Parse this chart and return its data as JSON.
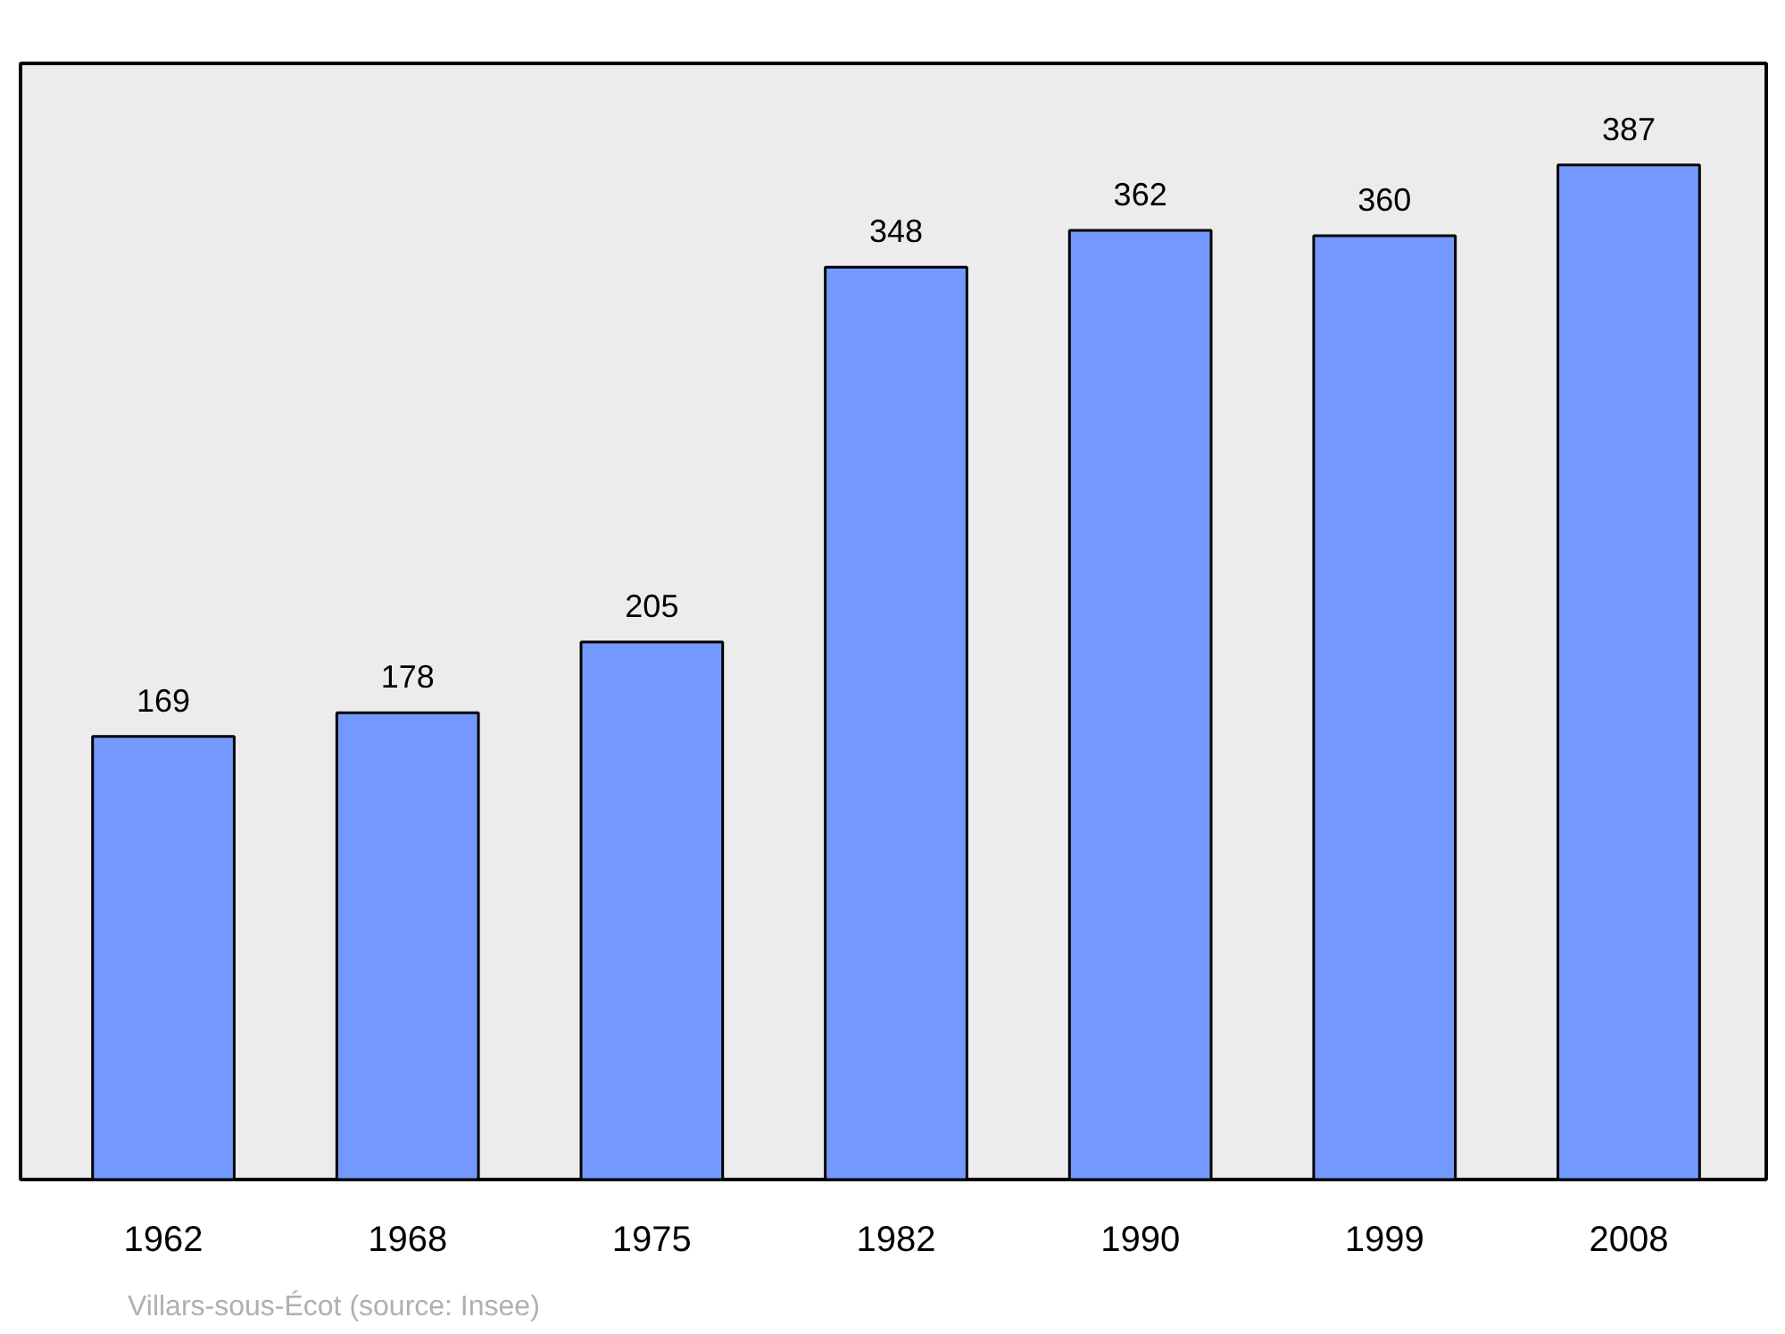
{
  "chart_data": {
    "type": "bar",
    "categories": [
      "1962",
      "1968",
      "1975",
      "1982",
      "1990",
      "1999",
      "2008"
    ],
    "values": [
      169,
      178,
      205,
      348,
      362,
      360,
      387
    ],
    "color": "#7399ff",
    "data_labels": true,
    "grid": false,
    "annotations": [
      "Villars-sous-Écot    (source: Insee)"
    ]
  }
}
